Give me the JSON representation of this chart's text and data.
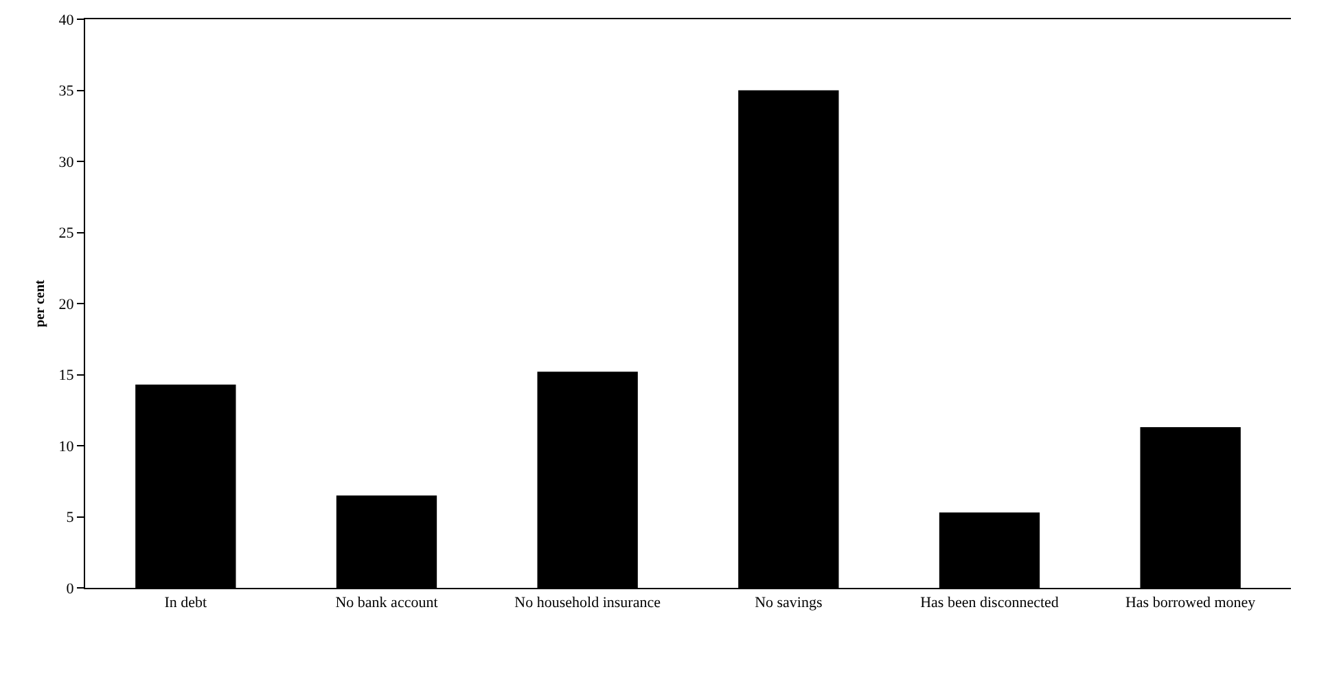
{
  "chart_data": {
    "type": "bar",
    "ylabel": "per cent",
    "categories": [
      "In debt",
      "No bank account",
      "No household insurance",
      "No savings",
      "Has been disconnected",
      "Has borrowed money"
    ],
    "values": [
      14.3,
      6.5,
      15.2,
      35,
      5.3,
      11.3
    ],
    "color": "#000000",
    "ylim": [
      0,
      40
    ],
    "yticks": [
      0,
      5,
      10,
      15,
      20,
      25,
      30,
      35,
      40
    ],
    "grid": false,
    "legend": false
  }
}
